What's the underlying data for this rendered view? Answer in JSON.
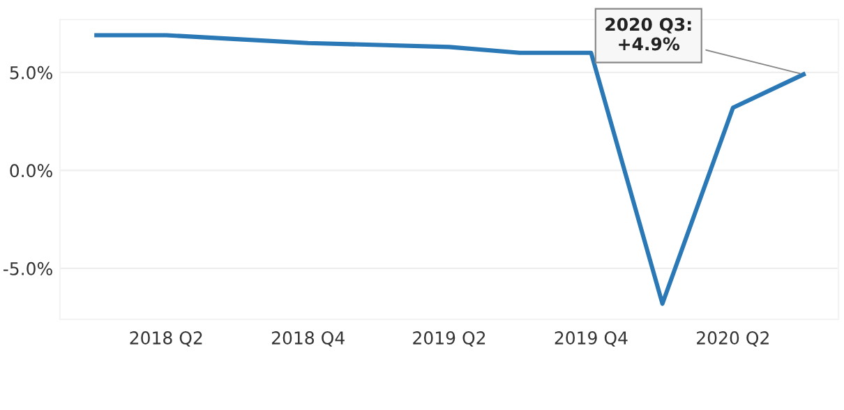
{
  "chart_data": {
    "type": "line",
    "x": [
      "2018-01",
      "2018-04",
      "2018-07",
      "2018-10",
      "2019-01",
      "2019-04",
      "2019-07",
      "2019-10",
      "2020-01",
      "2020-04",
      "2020-07"
    ],
    "series": [
      {
        "color": "#2a78b5",
        "values": [
          6.9,
          6.9,
          6.7,
          6.5,
          6.4,
          6.3,
          6.0,
          6.0,
          -6.8,
          3.2,
          4.9
        ]
      }
    ],
    "xlim": [
      "2017-11-15",
      "2020-08-15"
    ],
    "xticks": [
      {
        "value": "2018-04",
        "label": "2018 Q2"
      },
      {
        "value": "2018-10",
        "label": "2018 Q4"
      },
      {
        "value": "2019-04",
        "label": "2019 Q2"
      },
      {
        "value": "2019-10",
        "label": "2019 Q4"
      },
      {
        "value": "2020-04",
        "label": "2020 Q2"
      }
    ],
    "ylim": [
      -7.6,
      7.7
    ],
    "yticks": [
      {
        "value": -5,
        "label": "-5.0%"
      },
      {
        "value": 0,
        "label": "0.0%"
      },
      {
        "value": 5,
        "label": "5.0%"
      }
    ],
    "grid": "y",
    "marker": "none",
    "line_style": "solid",
    "annotations": [
      {
        "text": "2020 Q3:\n+4.9%",
        "x": "2020-07",
        "y": 4.9
      }
    ]
  }
}
